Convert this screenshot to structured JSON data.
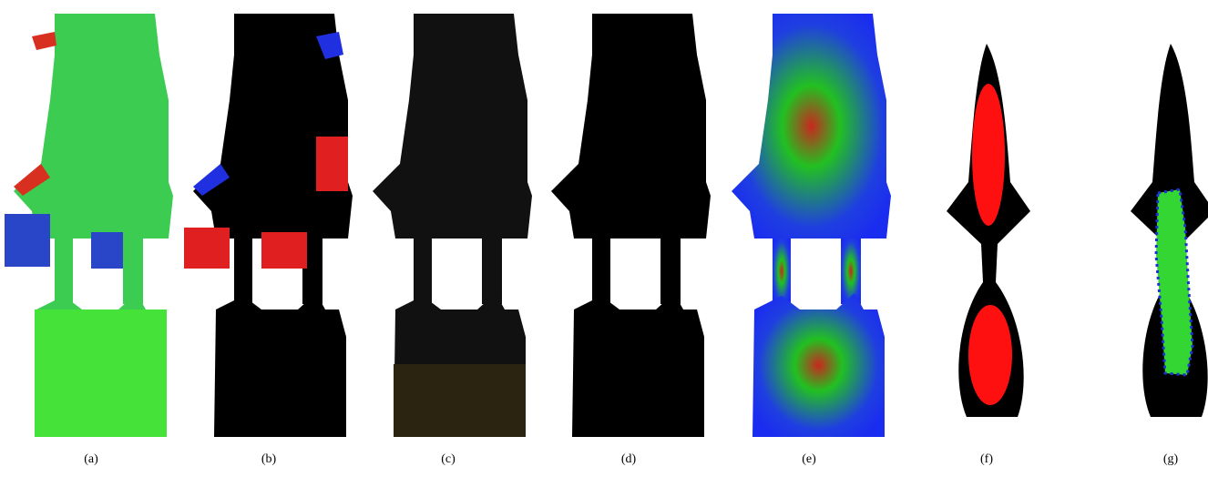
{
  "figure": {
    "panels": [
      {
        "label": "(a)"
      },
      {
        "label": "(b)"
      },
      {
        "label": "(c)"
      },
      {
        "label": "(d)"
      },
      {
        "label": "(e)"
      },
      {
        "label": "(f)"
      },
      {
        "label": "(g)"
      }
    ]
  }
}
